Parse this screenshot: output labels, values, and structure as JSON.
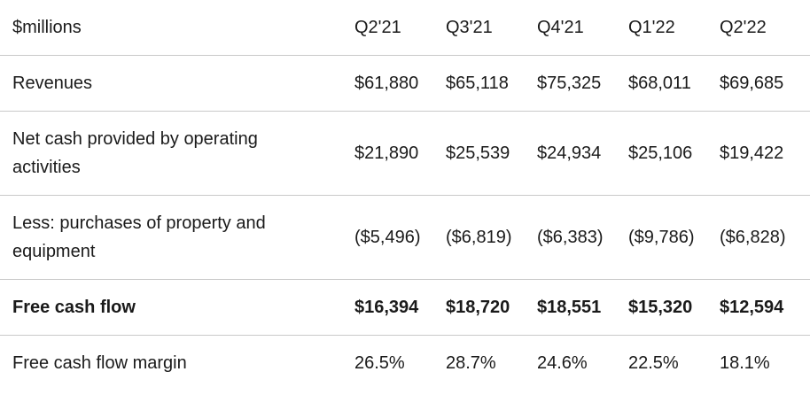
{
  "table": {
    "unit_label": "$millions",
    "columns": [
      "Q2'21",
      "Q3'21",
      "Q4'21",
      "Q1'22",
      "Q2'22"
    ],
    "rows": [
      {
        "label": "Revenues",
        "values": [
          "$61,880",
          "$65,118",
          "$75,325",
          "$68,011",
          "$69,685"
        ],
        "bold": false
      },
      {
        "label": "Net cash provided by operating activities",
        "values": [
          "$21,890",
          "$25,539",
          "$24,934",
          "$25,106",
          "$19,422"
        ],
        "bold": false
      },
      {
        "label": "Less: purchases of property and equipment",
        "values": [
          "($5,496)",
          "($6,819)",
          "($6,383)",
          "($9,786)",
          "($6,828)"
        ],
        "bold": false
      },
      {
        "label": "Free cash flow",
        "values": [
          "$16,394",
          "$18,720",
          "$18,551",
          "$15,320",
          "$12,594"
        ],
        "bold": true
      },
      {
        "label": "Free cash flow margin",
        "values": [
          "26.5%",
          "28.7%",
          "24.6%",
          "22.5%",
          "18.1%"
        ],
        "bold": false
      }
    ],
    "colors": {
      "text": "#1a1a1a",
      "border": "#c9c9c9",
      "background": "#ffffff"
    }
  },
  "chart_data": {
    "type": "table",
    "title": "",
    "unit": "$millions",
    "categories": [
      "Q2'21",
      "Q3'21",
      "Q4'21",
      "Q1'22",
      "Q2'22"
    ],
    "series": [
      {
        "name": "Revenues",
        "values": [
          61880,
          65118,
          75325,
          68011,
          69685
        ]
      },
      {
        "name": "Net cash provided by operating activities",
        "values": [
          21890,
          25539,
          24934,
          25106,
          19422
        ]
      },
      {
        "name": "Less: purchases of property and equipment",
        "values": [
          -5496,
          -6819,
          -6383,
          -9786,
          -6828
        ]
      },
      {
        "name": "Free cash flow",
        "values": [
          16394,
          18720,
          18551,
          15320,
          12594
        ]
      },
      {
        "name": "Free cash flow margin (%)",
        "values": [
          26.5,
          28.7,
          24.6,
          22.5,
          18.1
        ]
      }
    ]
  }
}
